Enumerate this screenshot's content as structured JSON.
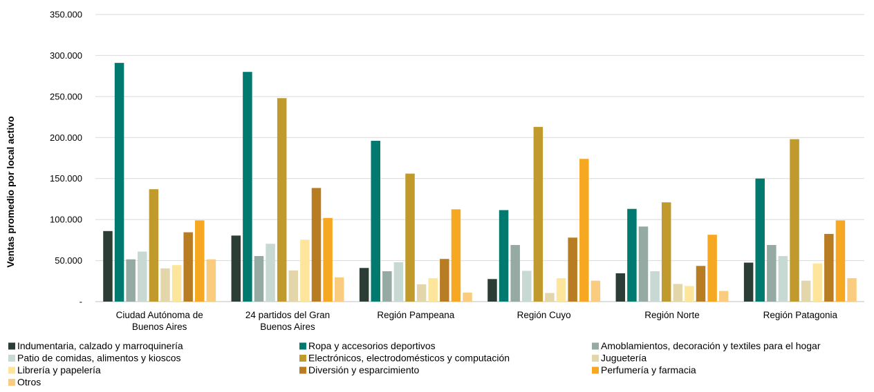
{
  "chart_data": {
    "type": "bar",
    "ylabel": "Ventas promedio por local activo",
    "ylim": [
      0,
      350000
    ],
    "yticks": [
      {
        "value": 0,
        "label": "-"
      },
      {
        "value": 50000,
        "label": "50.000"
      },
      {
        "value": 100000,
        "label": "100.000"
      },
      {
        "value": 150000,
        "label": "150.000"
      },
      {
        "value": 200000,
        "label": "200.000"
      },
      {
        "value": 250000,
        "label": "250.000"
      },
      {
        "value": 300000,
        "label": "300.000"
      },
      {
        "value": 350000,
        "label": "350.000"
      }
    ],
    "grid": true,
    "legend_position": "bottom",
    "categories": [
      [
        "Ciudad Autónoma de",
        "Buenos Aires"
      ],
      [
        "24 partidos del Gran",
        "Buenos Aires"
      ],
      [
        "Región Pampeana"
      ],
      [
        "Región Cuyo"
      ],
      [
        "Región Norte"
      ],
      [
        "Región Patagonia"
      ]
    ],
    "series": [
      {
        "name": "Indumentaria, calzado y marroquinería",
        "color": "#2b3d35",
        "values": [
          86000,
          80500,
          41000,
          27500,
          34500,
          47500
        ]
      },
      {
        "name": "Ropa y accesorios deportivos",
        "color": "#007a6e",
        "values": [
          291000,
          280000,
          196000,
          111500,
          113000,
          150000
        ]
      },
      {
        "name": "Amoblamientos, decoración y textiles para el hogar",
        "color": "#96aaa4",
        "values": [
          51500,
          55500,
          37000,
          69000,
          91500,
          69000
        ]
      },
      {
        "name": "Patio de comidas, alimentos y kioscos",
        "color": "#c8d8d2",
        "values": [
          61000,
          70500,
          48000,
          37500,
          37000,
          55500
        ]
      },
      {
        "name": "Electrónicos, electrodomésticos y computación",
        "color": "#c09a2c",
        "values": [
          137000,
          248000,
          156000,
          213000,
          121000,
          198000
        ]
      },
      {
        "name": "Juguetería",
        "color": "#e3d6aa",
        "values": [
          40500,
          38000,
          21000,
          10500,
          21500,
          25500
        ]
      },
      {
        "name": "Librería y papelería",
        "color": "#fde59c",
        "values": [
          44500,
          75500,
          28500,
          28500,
          19000,
          46500
        ]
      },
      {
        "name": "Diversión y esparcimiento",
        "color": "#b87d22",
        "values": [
          84500,
          138500,
          52000,
          78000,
          43500,
          82500
        ]
      },
      {
        "name": "Perfumería y farmacia",
        "color": "#f6a822",
        "values": [
          99000,
          102000,
          112500,
          174000,
          81500,
          99000
        ]
      },
      {
        "name": "Otros",
        "color": "#f9cc7f",
        "values": [
          51500,
          29500,
          11000,
          25500,
          13000,
          28500
        ]
      }
    ]
  }
}
